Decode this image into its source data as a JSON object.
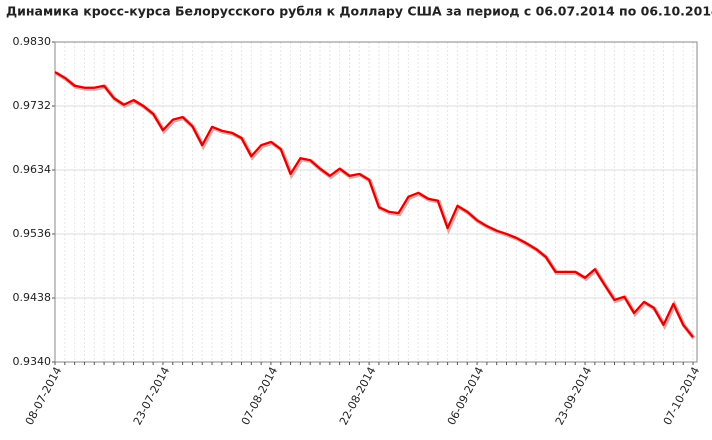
{
  "chart_data": {
    "type": "line",
    "title": "Динамика кросс-курса Белорусского рубля к Доллару США за период с 06.07.2014 по 06.10.2014",
    "categories": [
      "08-07-2014",
      null,
      null,
      null,
      null,
      null,
      null,
      null,
      null,
      null,
      null,
      "23-07-2014",
      null,
      null,
      null,
      null,
      null,
      null,
      null,
      null,
      null,
      null,
      "07-08-2014",
      null,
      null,
      null,
      null,
      null,
      null,
      null,
      null,
      null,
      "22-08-2014",
      null,
      null,
      null,
      null,
      null,
      null,
      null,
      null,
      null,
      null,
      "06-09-2014",
      null,
      null,
      null,
      null,
      null,
      null,
      null,
      null,
      null,
      null,
      "23-09-2014",
      null,
      null,
      null,
      null,
      null,
      null,
      null,
      null,
      null,
      null,
      "07-10-2014"
    ],
    "series": [
      {
        "color": "#e00000",
        "values": [
          0.9784,
          0.9775,
          0.9763,
          0.976,
          0.976,
          0.9763,
          0.9744,
          0.9734,
          0.9741,
          0.9732,
          0.972,
          0.9695,
          0.9711,
          0.9715,
          0.9701,
          0.9672,
          0.97,
          0.9694,
          0.9691,
          0.9683,
          0.9655,
          0.9672,
          0.9677,
          0.9666,
          0.9628,
          0.9652,
          0.9649,
          0.9636,
          0.9625,
          0.9636,
          0.9625,
          0.9628,
          0.9619,
          0.9577,
          0.957,
          0.9568,
          0.9593,
          0.9599,
          0.959,
          0.9587,
          0.9545,
          0.9579,
          0.957,
          0.9557,
          0.9548,
          0.9541,
          0.9536,
          0.953,
          0.9522,
          0.9513,
          0.9501,
          0.9478,
          0.9478,
          0.9478,
          0.9469,
          0.9482,
          0.9458,
          0.9435,
          0.944,
          0.9415,
          0.9432,
          0.9423,
          0.9397,
          0.9429,
          0.9397,
          0.9378
        ]
      }
    ],
    "ylim": [
      0.934,
      0.983
    ],
    "yticks": [
      {
        "value": 0.934,
        "label": "0.9340"
      },
      0.9438,
      0.9536,
      0.9634,
      0.9732,
      {
        "value": 0.983,
        "label": "0.9830"
      }
    ],
    "grid": true
  }
}
